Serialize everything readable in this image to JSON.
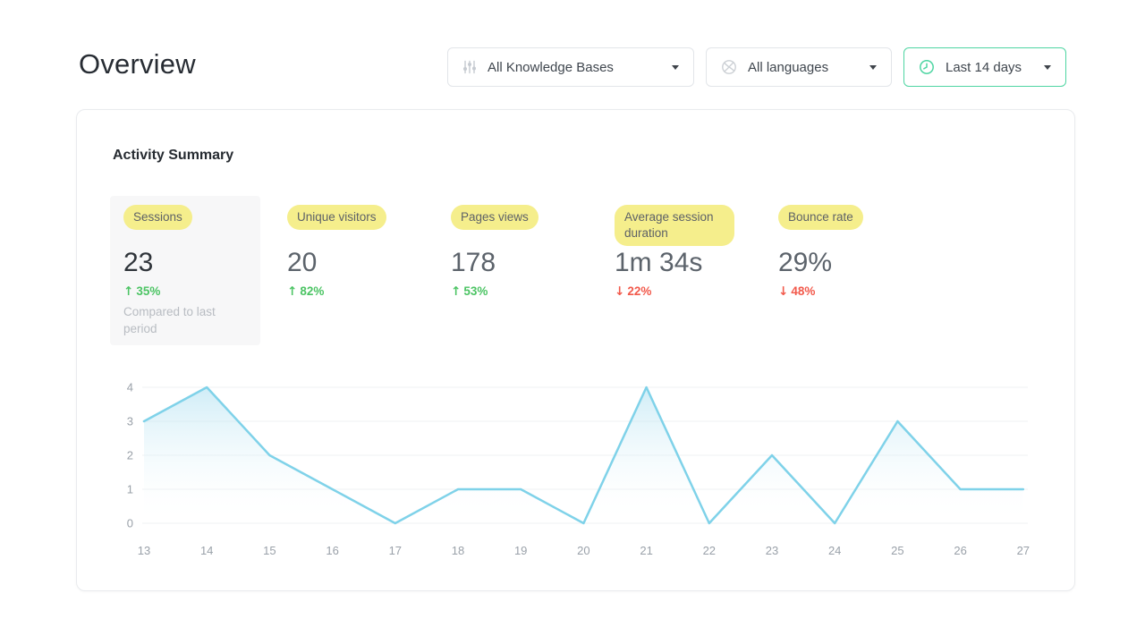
{
  "page": {
    "title": "Overview"
  },
  "filters": {
    "knowledge_bases": {
      "label": "All Knowledge Bases",
      "icon": "sliders-icon"
    },
    "languages": {
      "label": "All languages",
      "icon": "globe-icon"
    },
    "date_range": {
      "label": "Last 14 days",
      "icon": "clock-icon",
      "accent_color": "#4ed5a2"
    }
  },
  "card": {
    "title": "Activity Summary",
    "stats": {
      "highlight_color": "#f5ee8c",
      "items": [
        {
          "label": "Sessions",
          "value": "23",
          "arrow": "↑",
          "change": "35%",
          "direction": "up",
          "change_color": "#4cc464",
          "note": "Compared to last period"
        },
        {
          "label": "Unique visitors",
          "value": "20",
          "arrow": "↑",
          "change": "82%",
          "direction": "up",
          "change_color": "#4cc464"
        },
        {
          "label": "Pages views",
          "value": "178",
          "arrow": "↑",
          "change": "53%",
          "direction": "up",
          "change_color": "#4cc464"
        },
        {
          "label": "Average session duration",
          "value": "1m 34s",
          "arrow": "↓",
          "change": "22%",
          "direction": "down",
          "change_color": "#f2594b"
        },
        {
          "label": "Bounce rate",
          "value": "29%",
          "arrow": "↓",
          "change": "48%",
          "direction": "down",
          "change_color": "#f2594b"
        }
      ]
    }
  },
  "chart_data": {
    "type": "area",
    "title": "",
    "xlabel": "",
    "ylabel": "",
    "x": [
      "13",
      "14",
      "15",
      "16",
      "17",
      "18",
      "19",
      "20",
      "21",
      "22",
      "23",
      "24",
      "25",
      "26",
      "27"
    ],
    "values": [
      3,
      4,
      2,
      1,
      0,
      1,
      1,
      0,
      4,
      0,
      2,
      0,
      3,
      1,
      1
    ],
    "yticks": [
      0,
      1,
      2,
      3,
      4
    ],
    "ylim": [
      0,
      4
    ],
    "grid": true,
    "legend": "none",
    "line_color": "#7fd2e9",
    "fill_top_color": "#a9def0",
    "grid_color": "#eff1f3",
    "tick_color": "#9aa1a9"
  }
}
